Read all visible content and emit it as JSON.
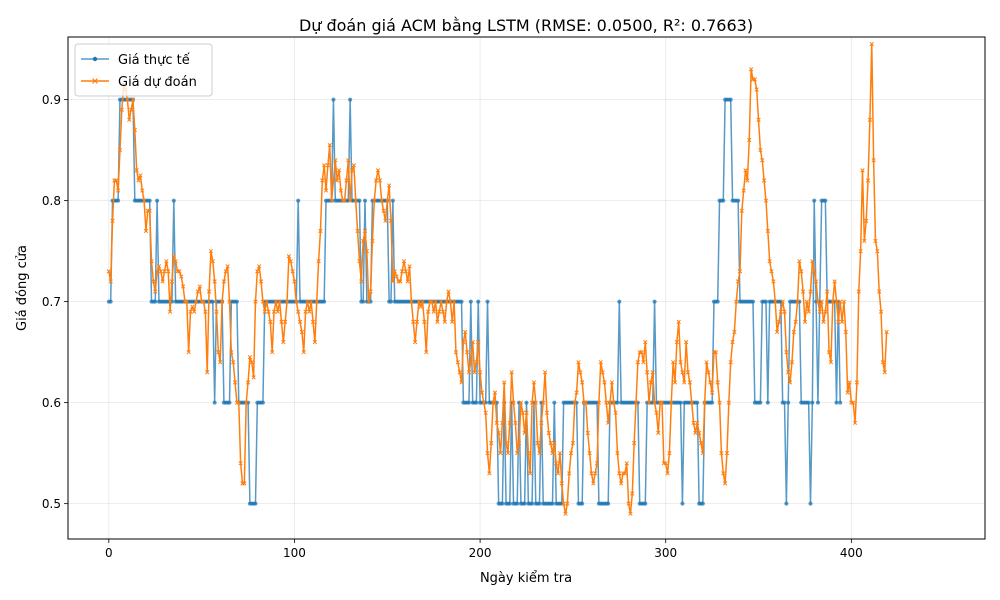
{
  "chart_data": {
    "type": "line",
    "title": "Dự đoán giá ACM bằng LSTM (RMSE: 0.0500, R²: 0.7663)",
    "xlabel": "Ngày kiểm tra",
    "ylabel": "Giá đóng cửa",
    "xlim": [
      -22,
      472
    ],
    "ylim": [
      0.465,
      0.962
    ],
    "xticks": [
      0,
      100,
      200,
      300,
      400
    ],
    "yticks": [
      0.5,
      0.6,
      0.7,
      0.8,
      0.9
    ],
    "ytick_labels": [
      "0.5",
      "0.6",
      "0.7",
      "0.8",
      "0.9"
    ],
    "grid": true,
    "legend_position": "top-left",
    "series": [
      {
        "name": "Giá thực tế",
        "color": "#1f77b4",
        "marker": "dot",
        "x_start": 0,
        "values": [
          0.7,
          0.7,
          0.8,
          0.8,
          0.8,
          0.8,
          0.9,
          0.9,
          0.9,
          0.9,
          0.9,
          0.9,
          0.9,
          0.9,
          0.8,
          0.8,
          0.8,
          0.8,
          0.8,
          0.8,
          0.8,
          0.8,
          0.8,
          0.7,
          0.7,
          0.7,
          0.8,
          0.7,
          0.7,
          0.7,
          0.7,
          0.7,
          0.7,
          0.7,
          0.7,
          0.8,
          0.7,
          0.7,
          0.7,
          0.7,
          0.7,
          0.7,
          0.7,
          0.7,
          0.7,
          0.7,
          0.7,
          0.7,
          0.7,
          0.7,
          0.7,
          0.7,
          0.7,
          0.7,
          0.7,
          0.7,
          0.7,
          0.6,
          0.7,
          0.7,
          0.7,
          0.7,
          0.6,
          0.6,
          0.6,
          0.6,
          0.7,
          0.7,
          0.7,
          0.7,
          0.6,
          0.6,
          0.6,
          0.6,
          0.6,
          0.6,
          0.5,
          0.5,
          0.5,
          0.5,
          0.6,
          0.6,
          0.6,
          0.6,
          0.7,
          0.7,
          0.7,
          0.7,
          0.7,
          0.7,
          0.7,
          0.7,
          0.7,
          0.7,
          0.7,
          0.7,
          0.7,
          0.7,
          0.7,
          0.7,
          0.7,
          0.7,
          0.8,
          0.7,
          0.7,
          0.7,
          0.7,
          0.7,
          0.7,
          0.7,
          0.7,
          0.7,
          0.7,
          0.7,
          0.7,
          0.7,
          0.7,
          0.8,
          0.8,
          0.8,
          0.8,
          0.9,
          0.8,
          0.8,
          0.8,
          0.8,
          0.8,
          0.8,
          0.8,
          0.8,
          0.9,
          0.8,
          0.8,
          0.8,
          0.8,
          0.8,
          0.7,
          0.7,
          0.8,
          0.7,
          0.7,
          0.7,
          0.8,
          0.8,
          0.8,
          0.8,
          0.8,
          0.8,
          0.8,
          0.8,
          0.8,
          0.7,
          0.7,
          0.8,
          0.7,
          0.7,
          0.7,
          0.7,
          0.7,
          0.7,
          0.7,
          0.7,
          0.7,
          0.7,
          0.7,
          0.7,
          0.7,
          0.7,
          0.7,
          0.7,
          0.7,
          0.7,
          0.7,
          0.7,
          0.7,
          0.7,
          0.7,
          0.7,
          0.7,
          0.7,
          0.7,
          0.7,
          0.7,
          0.7,
          0.7,
          0.7,
          0.7,
          0.7,
          0.7,
          0.7,
          0.7,
          0.6,
          0.6,
          0.6,
          0.6,
          0.7,
          0.6,
          0.6,
          0.6,
          0.7,
          0.6,
          0.6,
          0.6,
          0.6,
          0.7,
          0.6,
          0.6,
          0.6,
          0.6,
          0.6,
          0.5,
          0.5,
          0.5,
          0.6,
          0.5,
          0.5,
          0.5,
          0.6,
          0.5,
          0.5,
          0.5,
          0.6,
          0.5,
          0.5,
          0.5,
          0.6,
          0.5,
          0.5,
          0.5,
          0.6,
          0.5,
          0.5,
          0.5,
          0.6,
          0.5,
          0.5,
          0.5,
          0.5,
          0.5,
          0.5,
          0.6,
          0.5,
          0.5,
          0.5,
          0.5,
          0.6,
          0.6,
          0.6,
          0.6,
          0.6,
          0.6,
          0.6,
          0.6,
          0.5,
          0.5,
          0.5,
          0.6,
          0.6,
          0.6,
          0.6,
          0.6,
          0.6,
          0.6,
          0.6,
          0.5,
          0.5,
          0.5,
          0.5,
          0.5,
          0.5,
          0.6,
          0.6,
          0.6,
          0.6,
          0.6,
          0.7,
          0.6,
          0.6,
          0.6,
          0.6,
          0.6,
          0.6,
          0.6,
          0.6,
          0.6,
          0.6,
          0.5,
          0.5,
          0.5,
          0.5,
          0.6,
          0.6,
          0.6,
          0.6,
          0.7,
          0.6,
          0.6,
          0.6,
          0.6,
          0.6,
          0.6,
          0.6,
          0.6,
          0.6,
          0.6,
          0.6,
          0.6,
          0.6,
          0.6,
          0.5,
          0.6,
          0.6,
          0.6,
          0.6,
          0.6,
          0.6,
          0.6,
          0.6,
          0.5,
          0.5,
          0.5,
          0.6,
          0.6,
          0.6,
          0.6,
          0.6,
          0.7,
          0.7,
          0.7,
          0.8,
          0.8,
          0.8,
          0.9,
          0.9,
          0.9,
          0.9,
          0.8,
          0.8,
          0.8,
          0.8,
          0.7,
          0.7,
          0.7,
          0.7,
          0.7,
          0.7,
          0.7,
          0.7,
          0.6,
          0.6,
          0.6,
          0.6,
          0.7,
          0.7,
          0.7,
          0.6,
          0.7,
          0.7,
          0.7,
          0.7,
          0.7,
          0.7,
          0.7,
          0.6,
          0.6,
          0.5,
          0.6,
          0.7,
          0.7,
          0.7,
          0.7,
          0.7,
          0.7,
          0.6,
          0.6,
          0.6,
          0.6,
          0.6,
          0.5,
          0.6,
          0.8,
          0.7,
          0.6,
          0.7,
          0.8,
          0.8,
          0.8,
          0.7,
          0.7,
          0.7,
          0.7,
          0.7,
          0.6,
          0.7,
          0.6
        ]
      },
      {
        "name": "Giá dự đoán",
        "color": "#ff7f0e",
        "marker": "x",
        "x_start": 0,
        "values": [
          0.73,
          0.72,
          0.78,
          0.82,
          0.82,
          0.81,
          0.85,
          0.89,
          0.915,
          0.91,
          0.9,
          0.88,
          0.89,
          0.9,
          0.87,
          0.83,
          0.82,
          0.825,
          0.81,
          0.8,
          0.77,
          0.79,
          0.79,
          0.74,
          0.72,
          0.71,
          0.73,
          0.735,
          0.73,
          0.72,
          0.73,
          0.74,
          0.73,
          0.69,
          0.72,
          0.745,
          0.74,
          0.73,
          0.73,
          0.725,
          0.715,
          0.7,
          0.7,
          0.65,
          0.69,
          0.695,
          0.69,
          0.7,
          0.71,
          0.715,
          0.7,
          0.7,
          0.69,
          0.63,
          0.71,
          0.75,
          0.74,
          0.72,
          0.69,
          0.65,
          0.64,
          0.7,
          0.72,
          0.73,
          0.735,
          0.7,
          0.65,
          0.64,
          0.62,
          0.6,
          0.6,
          0.54,
          0.52,
          0.52,
          0.6,
          0.62,
          0.645,
          0.64,
          0.625,
          0.7,
          0.73,
          0.735,
          0.72,
          0.7,
          0.69,
          0.7,
          0.69,
          0.68,
          0.65,
          0.69,
          0.7,
          0.69,
          0.7,
          0.68,
          0.66,
          0.68,
          0.7,
          0.745,
          0.74,
          0.73,
          0.72,
          0.7,
          0.69,
          0.68,
          0.67,
          0.65,
          0.69,
          0.7,
          0.69,
          0.7,
          0.68,
          0.66,
          0.7,
          0.74,
          0.77,
          0.82,
          0.835,
          0.81,
          0.835,
          0.855,
          0.8,
          0.82,
          0.84,
          0.82,
          0.83,
          0.81,
          0.8,
          0.8,
          0.82,
          0.84,
          0.8,
          0.83,
          0.835,
          0.8,
          0.77,
          0.74,
          0.72,
          0.76,
          0.77,
          0.75,
          0.7,
          0.71,
          0.76,
          0.8,
          0.82,
          0.83,
          0.82,
          0.8,
          0.79,
          0.78,
          0.8,
          0.815,
          0.78,
          0.72,
          0.73,
          0.725,
          0.72,
          0.72,
          0.73,
          0.74,
          0.73,
          0.72,
          0.735,
          0.7,
          0.68,
          0.66,
          0.68,
          0.7,
          0.695,
          0.7,
          0.68,
          0.65,
          0.69,
          0.7,
          0.7,
          0.69,
          0.7,
          0.68,
          0.69,
          0.7,
          0.69,
          0.68,
          0.7,
          0.71,
          0.7,
          0.68,
          0.7,
          0.65,
          0.64,
          0.63,
          0.62,
          0.66,
          0.67,
          0.65,
          0.63,
          0.64,
          0.66,
          0.63,
          0.64,
          0.66,
          0.63,
          0.61,
          0.6,
          0.59,
          0.55,
          0.53,
          0.56,
          0.6,
          0.61,
          0.58,
          0.57,
          0.55,
          0.58,
          0.62,
          0.56,
          0.55,
          0.58,
          0.63,
          0.6,
          0.58,
          0.55,
          0.56,
          0.6,
          0.59,
          0.57,
          0.59,
          0.55,
          0.53,
          0.6,
          0.62,
          0.6,
          0.56,
          0.55,
          0.58,
          0.6,
          0.63,
          0.59,
          0.57,
          0.56,
          0.55,
          0.56,
          0.54,
          0.53,
          0.55,
          0.52,
          0.5,
          0.49,
          0.5,
          0.53,
          0.55,
          0.56,
          0.6,
          0.61,
          0.64,
          0.63,
          0.62,
          0.6,
          0.6,
          0.57,
          0.55,
          0.53,
          0.52,
          0.53,
          0.54,
          0.6,
          0.64,
          0.63,
          0.62,
          0.6,
          0.58,
          0.6,
          0.62,
          0.6,
          0.59,
          0.55,
          0.53,
          0.52,
          0.53,
          0.53,
          0.54,
          0.5,
          0.49,
          0.51,
          0.56,
          0.6,
          0.64,
          0.65,
          0.65,
          0.64,
          0.66,
          0.63,
          0.6,
          0.62,
          0.63,
          0.6,
          0.59,
          0.57,
          0.6,
          0.6,
          0.54,
          0.54,
          0.53,
          0.55,
          0.6,
          0.64,
          0.62,
          0.66,
          0.68,
          0.64,
          0.63,
          0.62,
          0.66,
          0.63,
          0.62,
          0.6,
          0.58,
          0.57,
          0.58,
          0.57,
          0.56,
          0.55,
          0.6,
          0.64,
          0.63,
          0.62,
          0.61,
          0.65,
          0.65,
          0.62,
          0.6,
          0.55,
          0.53,
          0.52,
          0.55,
          0.6,
          0.64,
          0.66,
          0.67,
          0.7,
          0.72,
          0.73,
          0.79,
          0.81,
          0.83,
          0.82,
          0.86,
          0.93,
          0.92,
          0.92,
          0.91,
          0.88,
          0.85,
          0.84,
          0.82,
          0.8,
          0.77,
          0.74,
          0.73,
          0.72,
          0.7,
          0.67,
          0.68,
          0.69,
          0.7,
          0.69,
          0.65,
          0.63,
          0.62,
          0.64,
          0.67,
          0.68,
          0.7,
          0.74,
          0.73,
          0.71,
          0.68,
          0.7,
          0.69,
          0.71,
          0.74,
          0.73,
          0.72,
          0.7,
          0.69,
          0.7,
          0.68,
          0.69,
          0.71,
          0.65,
          0.64,
          0.7,
          0.72,
          0.7,
          0.68,
          0.7,
          0.68,
          0.7,
          0.67,
          0.61,
          0.62,
          0.6,
          0.6,
          0.58,
          0.62,
          0.71,
          0.75,
          0.83,
          0.76,
          0.78,
          0.82,
          0.88,
          0.955,
          0.84,
          0.76,
          0.75,
          0.71,
          0.69,
          0.64,
          0.63,
          0.67
        ]
      }
    ]
  }
}
